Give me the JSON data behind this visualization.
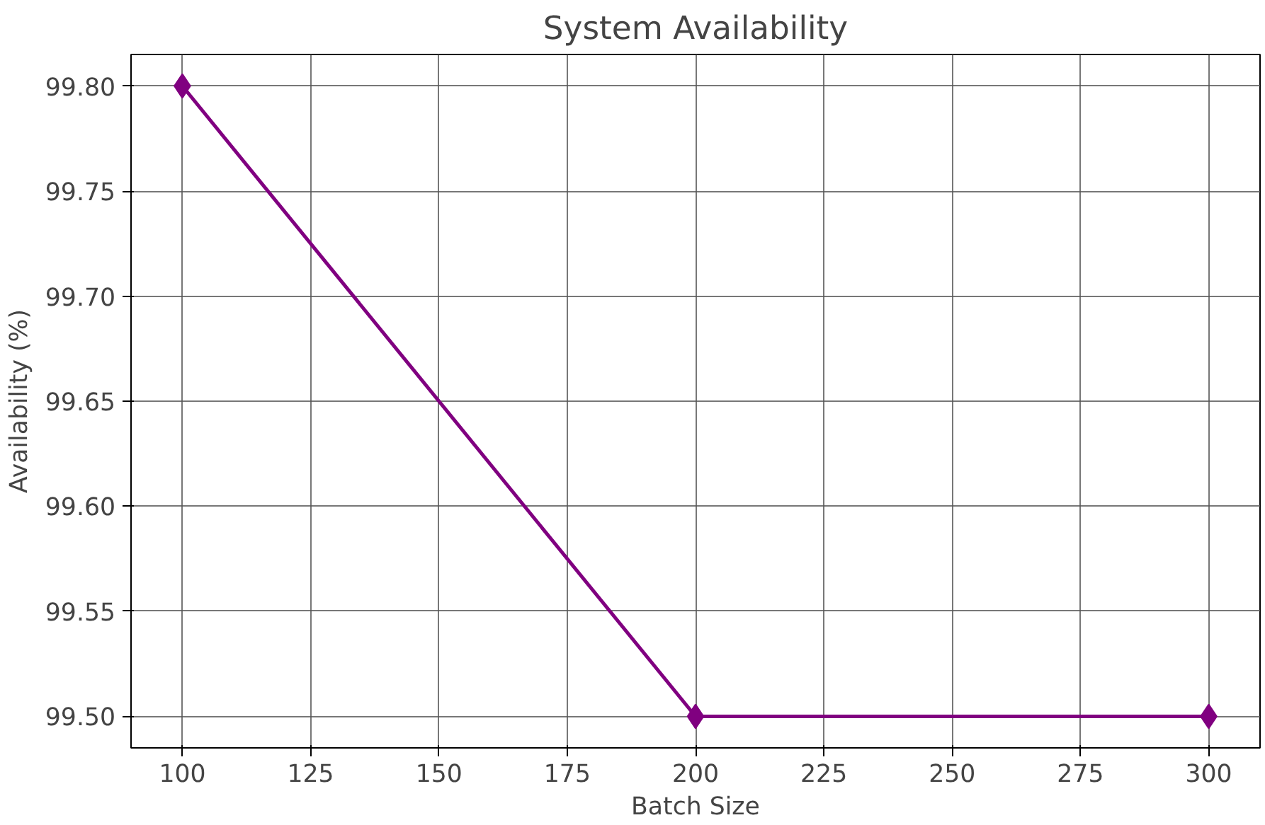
{
  "chart_data": {
    "type": "line",
    "title": "System Availability",
    "xlabel": "Batch Size",
    "ylabel": "Availability (%)",
    "x": [
      100,
      200,
      300
    ],
    "series": [
      {
        "color": "#800080",
        "values": [
          99.8,
          99.5,
          99.5
        ]
      }
    ],
    "xlim": [
      90,
      310
    ],
    "xticks": [
      100,
      125,
      150,
      175,
      200,
      225,
      250,
      275,
      300
    ],
    "ylim": [
      99.485,
      99.815
    ],
    "yticks": [
      {
        "value": 99.5,
        "label": "99.50"
      },
      {
        "value": 99.55,
        "label": "99.55"
      },
      {
        "value": 99.6,
        "label": "99.60"
      },
      {
        "value": 99.65,
        "label": "99.65"
      },
      {
        "value": 99.7,
        "label": "99.70"
      },
      {
        "value": 99.75,
        "label": "99.75"
      },
      {
        "value": 99.8,
        "label": "99.80"
      }
    ],
    "grid": true,
    "marker": "diamond",
    "line_style": "solid"
  }
}
